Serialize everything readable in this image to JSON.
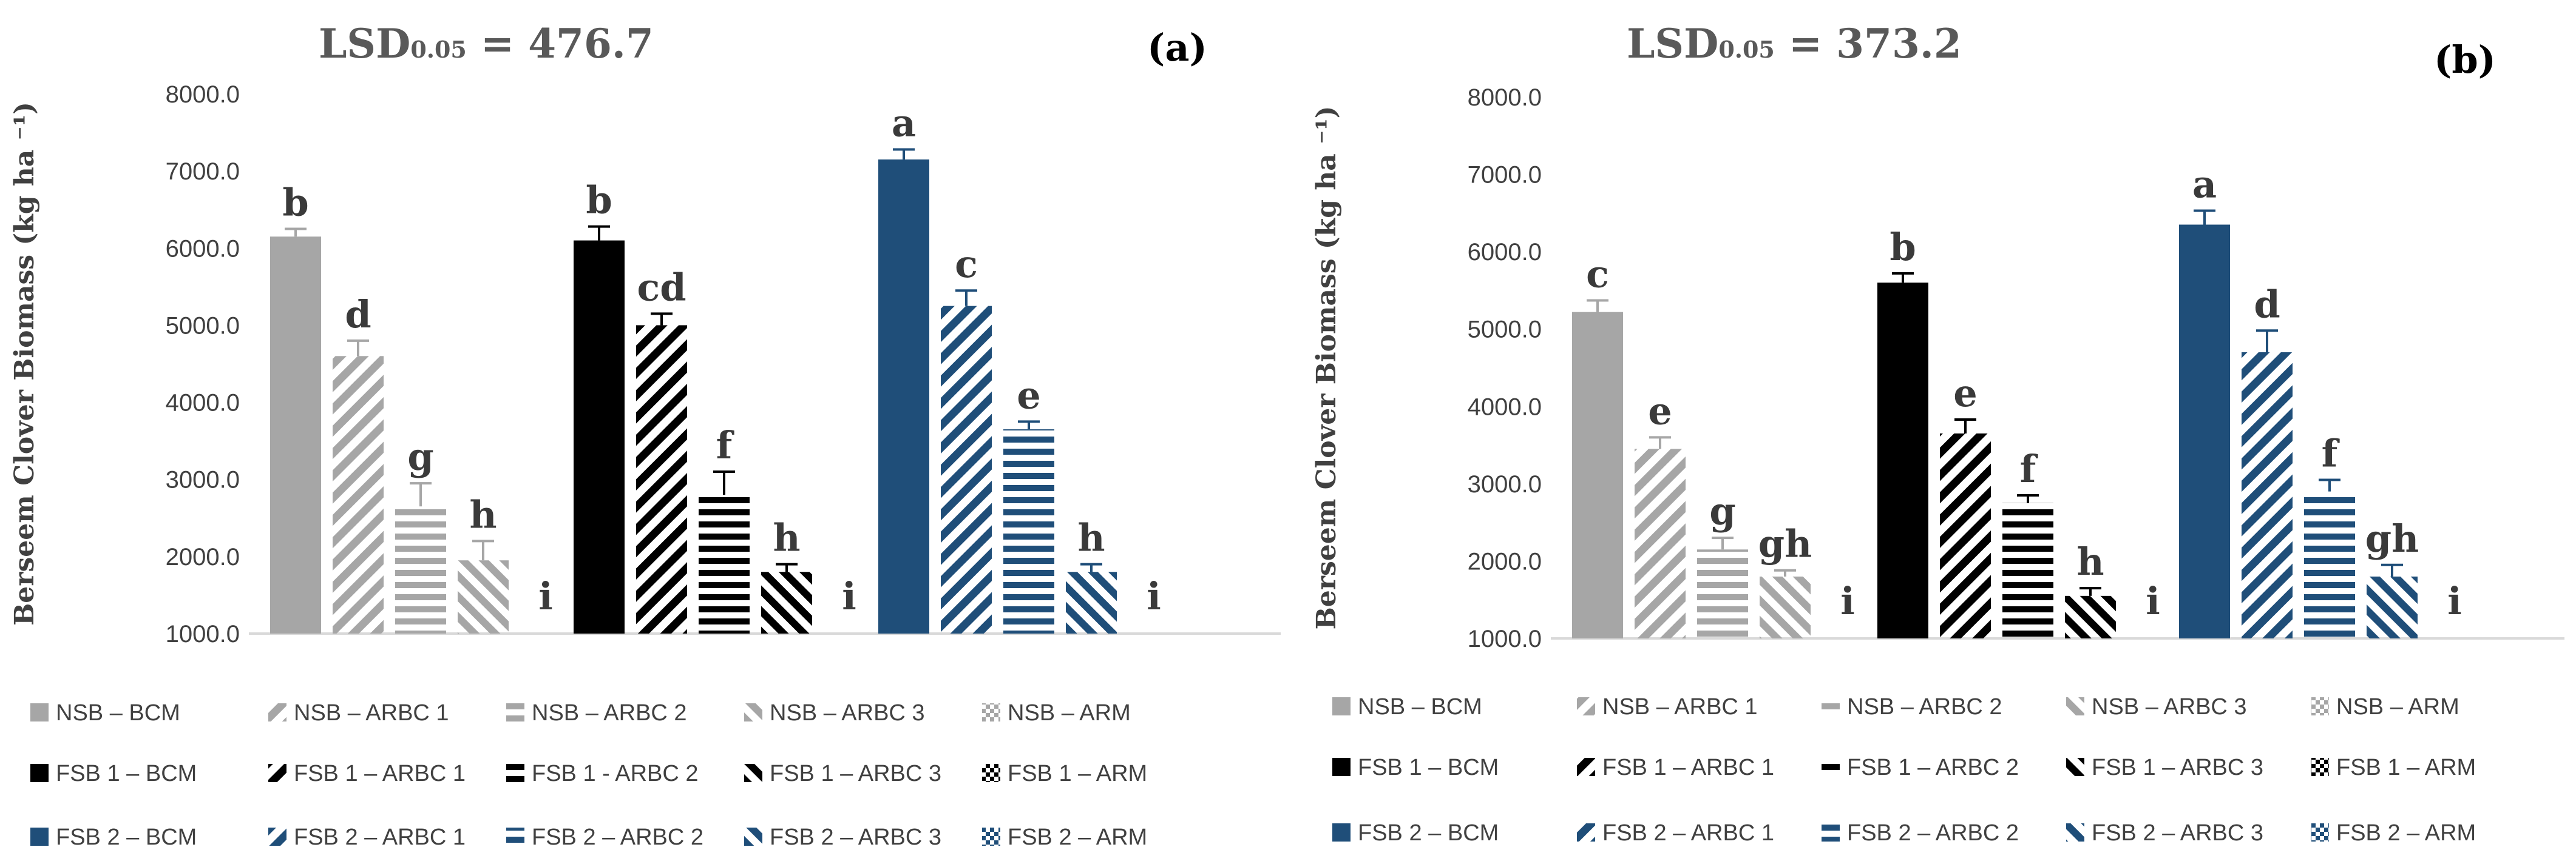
{
  "chart_data": [
    {
      "panel": "(a)",
      "type": "bar",
      "title": "LSD0.05 = 476.7",
      "title_main": "LSD",
      "title_sub": "0.05",
      "title_rest": " = 476.7",
      "ylabel": "Berseem Clover Biomass (kg ha ⁻¹)",
      "ylim": [
        1000,
        8000
      ],
      "yticks": [
        "1000.0",
        "2000.0",
        "3000.0",
        "4000.0",
        "5000.0",
        "6000.0",
        "7000.0",
        "8000.0"
      ],
      "groups": [
        {
          "bars": [
            {
              "value": 6150,
              "err": 100,
              "letter": "b"
            },
            {
              "value": 4600,
              "err": 200,
              "letter": "d"
            },
            {
              "value": 2650,
              "err": 300,
              "letter": "g"
            },
            {
              "value": 1950,
              "err": 250,
              "letter": "h"
            },
            {
              "value": 1000,
              "err": 0,
              "letter": "i"
            }
          ]
        },
        {
          "bars": [
            {
              "value": 6100,
              "err": 180,
              "letter": "b"
            },
            {
              "value": 5000,
              "err": 150,
              "letter": "cd"
            },
            {
              "value": 2800,
              "err": 300,
              "letter": "f"
            },
            {
              "value": 1800,
              "err": 100,
              "letter": "h"
            },
            {
              "value": 1000,
              "err": 0,
              "letter": "i"
            }
          ]
        },
        {
          "bars": [
            {
              "value": 7150,
              "err": 130,
              "letter": "a"
            },
            {
              "value": 5250,
              "err": 200,
              "letter": "c"
            },
            {
              "value": 3650,
              "err": 100,
              "letter": "e"
            },
            {
              "value": 1800,
              "err": 100,
              "letter": "h"
            },
            {
              "value": 1000,
              "err": 0,
              "letter": "i"
            }
          ]
        }
      ]
    },
    {
      "panel": "(b)",
      "type": "bar",
      "title": "LSD0.05 = 373.2",
      "title_main": "LSD",
      "title_sub": "0.05",
      "title_rest": " = 373.2",
      "ylabel": "Berseem Clover Biomass (kg ha ⁻¹)",
      "ylim": [
        1000,
        8000
      ],
      "yticks": [
        "1000.0",
        "2000.0",
        "3000.0",
        "4000.0",
        "5000.0",
        "6000.0",
        "7000.0",
        "8000.0"
      ],
      "groups": [
        {
          "bars": [
            {
              "value": 5220,
              "err": 150,
              "letter": "c"
            },
            {
              "value": 3450,
              "err": 150,
              "letter": "e"
            },
            {
              "value": 2150,
              "err": 150,
              "letter": "g"
            },
            {
              "value": 1800,
              "err": 80,
              "letter": "gh"
            },
            {
              "value": 1000,
              "err": 0,
              "letter": "i"
            }
          ]
        },
        {
          "bars": [
            {
              "value": 5600,
              "err": 120,
              "letter": "b"
            },
            {
              "value": 3650,
              "err": 180,
              "letter": "e"
            },
            {
              "value": 2750,
              "err": 100,
              "letter": "f"
            },
            {
              "value": 1550,
              "err": 100,
              "letter": "h"
            },
            {
              "value": 1000,
              "err": 0,
              "letter": "i"
            }
          ]
        },
        {
          "bars": [
            {
              "value": 6350,
              "err": 180,
              "letter": "a"
            },
            {
              "value": 4700,
              "err": 280,
              "letter": "d"
            },
            {
              "value": 2900,
              "err": 150,
              "letter": "f"
            },
            {
              "value": 1800,
              "err": 150,
              "letter": "gh"
            },
            {
              "value": 1000,
              "err": 0,
              "letter": "i"
            }
          ]
        }
      ]
    }
  ],
  "legend_a": [
    [
      "NSB – BCM",
      "NSB – ARBC 1",
      "NSB – ARBC 2",
      "NSB – ARBC 3",
      "NSB – ARM"
    ],
    [
      "FSB 1 – BCM",
      "FSB 1 – ARBC 1",
      "FSB 1 - ARBC 2",
      "FSB 1 – ARBC 3",
      "FSB 1 – ARM"
    ],
    [
      "FSB 2 – BCM",
      "FSB 2 – ARBC 1",
      "FSB 2 – ARBC 2",
      "FSB 2 – ARBC 3",
      "FSB 2 – ARM"
    ]
  ],
  "legend_b": [
    [
      "NSB – BCM",
      "NSB – ARBC 1",
      "NSB – ARBC 2",
      "NSB – ARBC 3",
      "NSB – ARM"
    ],
    [
      "FSB 1 – BCM",
      "FSB 1 – ARBC 1",
      "FSB 1 – ARBC 2",
      "FSB 1 – ARBC 3",
      "FSB 1 – ARM"
    ],
    [
      "FSB 2 – BCM",
      "FSB 2 – ARBC 1",
      "FSB 2 – ARBC 2",
      "FSB 2 – ARBC 3",
      "FSB 2 – ARM"
    ]
  ],
  "colors": {
    "NSB": "#a6a6a6",
    "FSB1": "#000000",
    "FSB2": "#1f4e79",
    "axis": "#d9d9d9",
    "text": "#404040",
    "title": "#595959",
    "letters": "#3a3a3a"
  }
}
